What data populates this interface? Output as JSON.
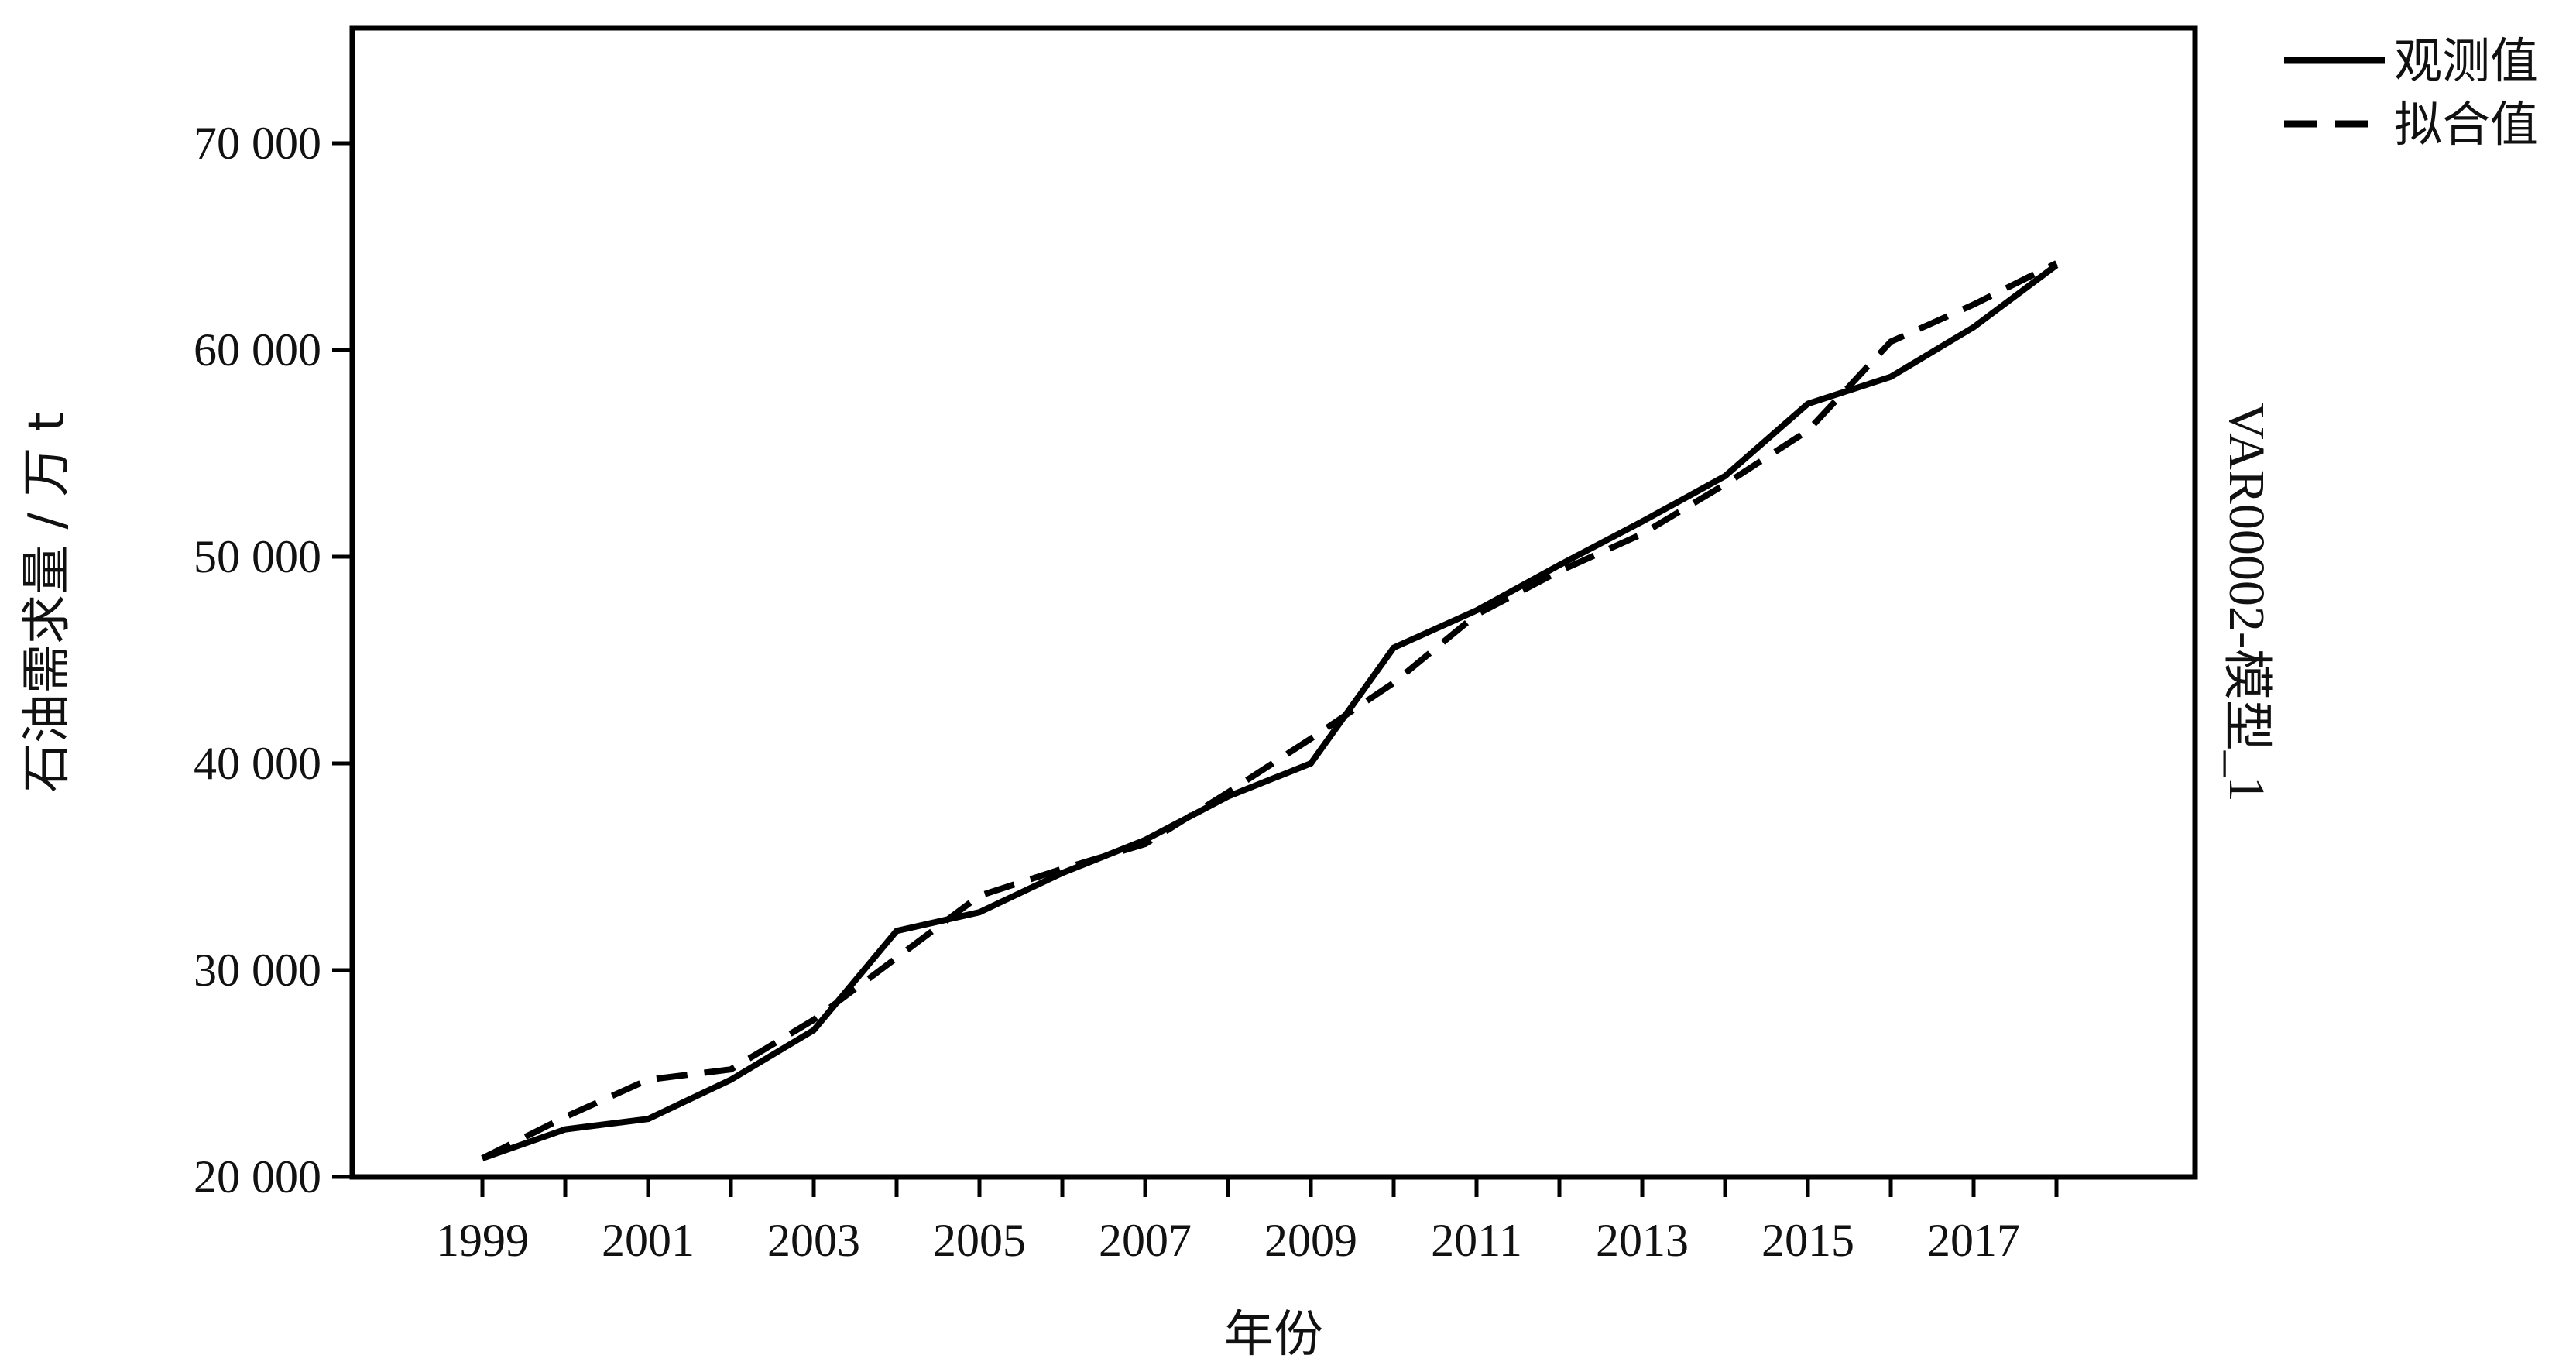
{
  "chart_data": {
    "type": "line",
    "x": [
      1999,
      2000,
      2001,
      2002,
      2003,
      2004,
      2005,
      2006,
      2007,
      2008,
      2009,
      2010,
      2011,
      2012,
      2013,
      2014,
      2015,
      2016,
      2017,
      2018
    ],
    "x_tick_labels": [
      "1999",
      "2001",
      "2003",
      "2005",
      "2007",
      "2009",
      "2011",
      "2013",
      "2015",
      "2017"
    ],
    "xlim": [
      1999,
      2018
    ],
    "ylim": [
      20000,
      75000
    ],
    "y_ticks": [
      20000,
      30000,
      40000,
      50000,
      60000,
      70000
    ],
    "y_tick_labels": [
      "20 000",
      "30 000",
      "40 000",
      "50 000",
      "60 000",
      "70 000"
    ],
    "xlabel": "年份",
    "ylabel": "石油需求量 / 万 t",
    "right_label": "VAR00002-模型_1",
    "legend_position": "top-right",
    "grid": false,
    "series": [
      {
        "name": "观测值",
        "style": "solid",
        "values": [
          20900,
          22300,
          22800,
          24700,
          27100,
          31900,
          32800,
          34700,
          36300,
          38400,
          40000,
          45600,
          47400,
          49600,
          51700,
          53900,
          57400,
          58700,
          61100,
          64100
        ]
      },
      {
        "name": "拟合值",
        "style": "dashed",
        "values": [
          20900,
          22900,
          24700,
          25200,
          27600,
          30600,
          33600,
          34900,
          36100,
          38600,
          41200,
          43900,
          47200,
          49300,
          51100,
          53500,
          56100,
          60400,
          62200,
          64200
        ]
      }
    ]
  }
}
